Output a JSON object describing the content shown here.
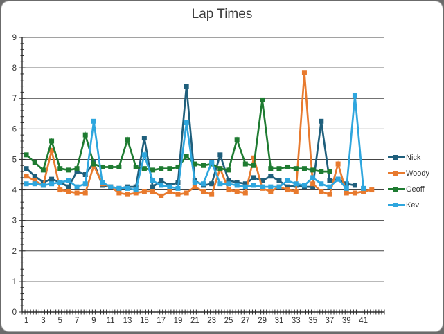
{
  "chart_data": {
    "type": "line",
    "title": "Lap Times",
    "xlabel": "",
    "ylabel": "",
    "ylim": [
      0,
      9
    ],
    "y_tick_step": 1,
    "y_minor_tick_step": 0.2,
    "grid": "horizontal",
    "legend_position": "right",
    "x_category_count": 43,
    "x_tick_labels": [
      "1",
      "3",
      "5",
      "7",
      "9",
      "11",
      "13",
      "15",
      "17",
      "19",
      "21",
      "23",
      "25",
      "27",
      "29",
      "31",
      "33",
      "35",
      "37",
      "39",
      "41"
    ],
    "series": [
      {
        "name": "Nick",
        "color": "#1F5F7C",
        "values": [
          4.7,
          4.45,
          4.25,
          4.35,
          4.25,
          4.1,
          4.6,
          4.5,
          4.9,
          4.15,
          4.1,
          4.05,
          4.1,
          4.1,
          5.7,
          4.1,
          4.3,
          4.15,
          4.25,
          7.4,
          4.3,
          4.15,
          4.2,
          5.15,
          4.3,
          4.25,
          4.2,
          4.4,
          4.3,
          4.45,
          4.3,
          4.1,
          4.15,
          4.1,
          4.1,
          6.25,
          4.3,
          4.35,
          4.2,
          4.15
        ]
      },
      {
        "name": "Woody",
        "color": "#E87A2E",
        "values": [
          4.45,
          4.3,
          4.15,
          5.3,
          4.0,
          3.95,
          3.9,
          3.9,
          4.8,
          4.2,
          4.1,
          3.9,
          3.85,
          3.9,
          3.95,
          3.95,
          3.8,
          3.95,
          3.85,
          3.9,
          4.1,
          3.95,
          3.85,
          4.7,
          4.0,
          3.95,
          3.9,
          5.05,
          4.05,
          3.95,
          4.1,
          4.0,
          3.95,
          7.85,
          4.2,
          3.95,
          3.85,
          4.85,
          3.9,
          3.9,
          3.95,
          4.0
        ]
      },
      {
        "name": "Geoff",
        "color": "#1E7B31",
        "values": [
          5.15,
          4.9,
          4.65,
          5.6,
          4.7,
          4.65,
          4.7,
          5.8,
          4.85,
          4.75,
          4.75,
          4.75,
          5.65,
          4.75,
          4.7,
          4.65,
          4.7,
          4.7,
          4.75,
          5.1,
          4.85,
          4.8,
          4.85,
          4.7,
          4.65,
          5.65,
          4.85,
          4.8,
          6.95,
          4.7,
          4.7,
          4.75,
          4.7,
          4.7,
          4.65,
          4.6,
          4.6
        ]
      },
      {
        "name": "Kev",
        "color": "#2EA6DE",
        "values": [
          4.2,
          4.2,
          4.15,
          4.2,
          4.25,
          4.3,
          4.1,
          4.2,
          6.25,
          4.25,
          4.1,
          4.05,
          4.05,
          4.0,
          5.15,
          4.3,
          4.15,
          4.1,
          4.05,
          6.2,
          4.25,
          4.2,
          4.9,
          4.2,
          4.2,
          4.15,
          4.1,
          4.15,
          4.1,
          4.1,
          4.1,
          4.3,
          4.2,
          4.15,
          4.4,
          4.2,
          4.1,
          4.35,
          4.05,
          7.1,
          4.05
        ]
      }
    ],
    "colors": {
      "background": "#ffffff",
      "outer_background": "#6b6b6b",
      "gridline": "#454545",
      "axis": "#2b2b2b",
      "tick": "#2b2b2b",
      "label_text": "#303030",
      "title_text": "#3a3a3a"
    }
  }
}
